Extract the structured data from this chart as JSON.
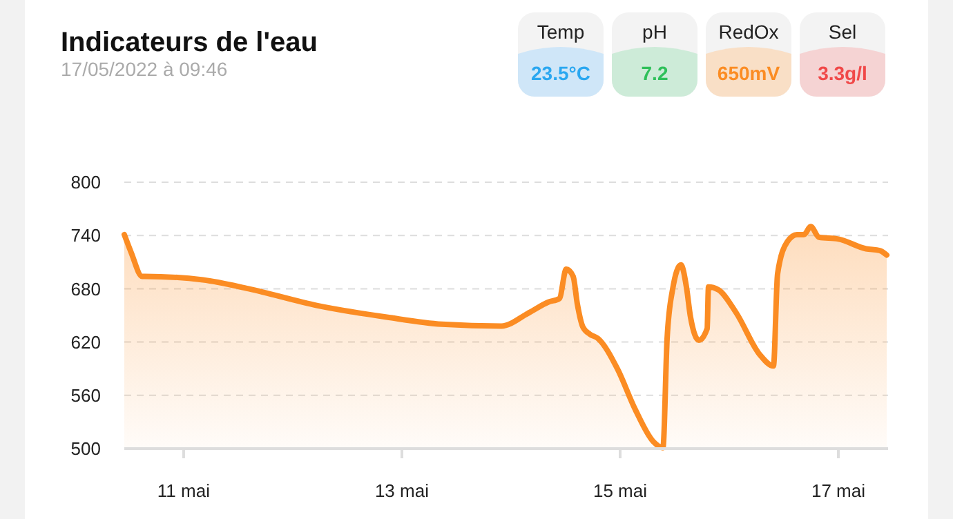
{
  "chart_data": {
    "type": "area",
    "title": "Indicateurs de l'eau",
    "subtitle": "17/05/2022 à 09:46",
    "annotations": [
      "Temp",
      "23.5°C",
      "pH",
      "7.2",
      "RedOx",
      "650mV",
      "Sel",
      "3.3g/l"
    ],
    "series": [
      {
        "color": "#fb8c23",
        "x": [
          "2022-05-10T10:57",
          "2022-05-10T12:27",
          "2022-05-10T14:53",
          "2022-05-10T15:30",
          "2022-05-11T04:15",
          "2022-05-11T14:17",
          "2022-05-12T05:28",
          "2022-05-12T20:40",
          "2022-05-13T08:49",
          "2022-05-13T21:52",
          "2022-05-14T03:57",
          "2022-05-14T08:12",
          "2022-05-14T10:38",
          "2022-05-14T12:09",
          "2022-05-14T13:40",
          "2022-05-14T14:35",
          "2022-05-14T15:48",
          "2022-05-14T17:19",
          "2022-05-14T19:08",
          "2022-05-14T23:23",
          "2022-05-15T03:20",
          "2022-05-15T07:17",
          "2022-05-15T09:25",
          "2022-05-15T10:20",
          "2022-05-15T11:32",
          "2022-05-15T13:22",
          "2022-05-15T14:35",
          "2022-05-15T15:29",
          "2022-05-15T17:19",
          "2022-05-15T19:08",
          "2022-05-15T19:26",
          "2022-05-15T21:34",
          "2022-05-16T01:31",
          "2022-05-16T06:41",
          "2022-05-16T09:43",
          "2022-05-16T10:38",
          "2022-05-16T12:46",
          "2022-05-16T14:53",
          "2022-05-16T16:25",
          "2022-05-16T17:55",
          "2022-05-16T19:45",
          "2022-05-17T00:00",
          "2022-05-17T06:05",
          "2022-05-17T09:07",
          "2022-05-17T10:38"
        ],
        "values": [
          741,
          721,
          694,
          694,
          690,
          680,
          661,
          648,
          640,
          638,
          653,
          665,
          669,
          702,
          694,
          663,
          637,
          629,
          624,
          590,
          544,
          508,
          501,
          624,
          679,
          707,
          682,
          648,
          622,
          635,
          682,
          679,
          653,
          606,
          593,
          697,
          733,
          741,
          741,
          750,
          738,
          736,
          725,
          723,
          718
        ]
      }
    ],
    "xlim": [
      "2022-05-10T10:57",
      "2022-05-17T10:56"
    ],
    "xticks": [
      {
        "value": "2022-05-11",
        "label": "11 mai"
      },
      {
        "value": "2022-05-13",
        "label": "13 mai"
      },
      {
        "value": "2022-05-15",
        "label": "15 mai"
      },
      {
        "value": "2022-05-17",
        "label": "17 mai"
      }
    ],
    "ylim": [
      500,
      800
    ],
    "yticks": [
      500,
      560,
      620,
      680,
      740,
      800
    ],
    "grid": "y",
    "line_style": "solid"
  }
}
